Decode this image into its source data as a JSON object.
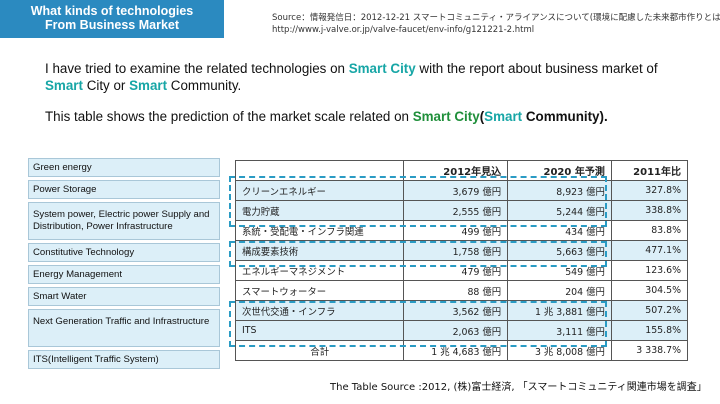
{
  "header": {
    "line1": "What kinds of technologies",
    "line2": "From Business Market"
  },
  "source_top": {
    "line1": "Source：情報発信日：2012-12-21 スマートコミュニティ・アライアンスについて(環境に配慮した未来都市作りとは)",
    "line2": "http://www.j-valve.or.jp/valve-faucet/env-info/g121221-2.html"
  },
  "intro": {
    "p1_a": "I have tried to examine the related technologies on ",
    "p1_b": "Smart City",
    "p1_c": " with the report about business market of ",
    "p1_d": "Smart",
    "p1_e": " City or ",
    "p1_f": "Smart",
    "p1_g": " Community.",
    "p2_a": "This table shows the prediction of the market scale related on ",
    "p2_b": "Smart City",
    "p2_c": "(",
    "p2_d": "Smart",
    "p2_e": " Community)."
  },
  "sidebar": {
    "items": [
      "Green energy",
      "Power Storage",
      "System power, Electric power Supply and Distribution, Power Infrastructure",
      "Constitutive Technology",
      "Energy Management",
      "Smart Water",
      "Next Generation Traffic and Infrastructure",
      "ITS(Intelligent Traffic System)"
    ]
  },
  "table": {
    "headers": [
      "",
      "2012年見込",
      "2020 年予測",
      "2011年比"
    ],
    "rows": [
      [
        "クリーンエネルギー",
        "3,679 億円",
        "8,923 億円",
        "327.8%"
      ],
      [
        "電力貯蔵",
        "2,555 億円",
        "5,244 億円",
        "338.8%"
      ],
      [
        "系統・受配電・インフラ関連",
        "499 億円",
        "434 億円",
        "83.8%"
      ],
      [
        "構成要素技術",
        "1,758 億円",
        "5,663 億円",
        "477.1%"
      ],
      [
        "エネルギーマネジメント",
        "479 億円",
        "549 億円",
        "123.6%"
      ],
      [
        "スマートウォーター",
        "88 億円",
        "204 億円",
        "304.5%"
      ],
      [
        "次世代交通・インフラ",
        "3,562 億円",
        "1 兆 3,881 億円",
        "507.2%"
      ],
      [
        "ITS",
        "2,063 億円",
        "3,111 億円",
        "155.8%"
      ],
      [
        "合計",
        "1 兆 4,683 億円",
        "3 兆 8,008 億円",
        "3 338.7%"
      ]
    ]
  },
  "source_bottom": "The Table Source :2012, (株)富士経済, 「スマートコミュニティ関連市場を調査」",
  "colors": {
    "accent": "#2b8ac0",
    "highlight_text": "#17a6a6",
    "row_fill": "#dceff8",
    "dash": "#2a9bc4"
  }
}
